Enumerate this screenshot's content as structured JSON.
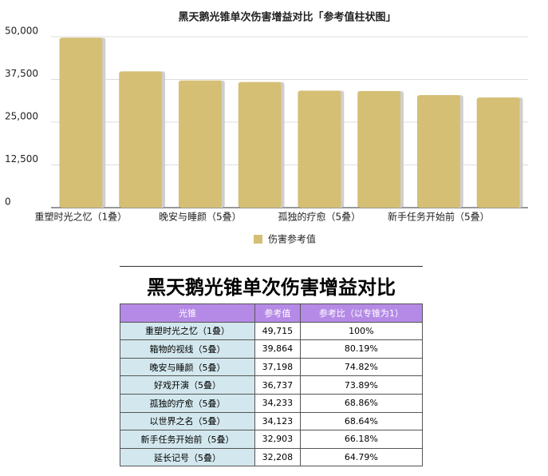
{
  "chart_data": {
    "type": "bar",
    "title": "黑天鹅光锥单次伤害增益对比「参考值柱状图」",
    "categories": [
      "重塑时光之忆（1叠）",
      null,
      "晚安与睡颜（5叠）",
      null,
      "孤独的疗愈（5叠）",
      null,
      "新手任务开始前（5叠）",
      null
    ],
    "series": [
      {
        "name": "伤害参考值",
        "color": "#d5bf74",
        "values": [
          49715,
          39864,
          37198,
          36737,
          34233,
          34123,
          32903,
          32208
        ]
      }
    ],
    "ylim": [
      0,
      50000
    ],
    "yticks": [
      0,
      {
        "value": 12500,
        "label": "12,500"
      },
      {
        "value": 25000,
        "label": "25,000"
      },
      {
        "value": 37500,
        "label": "37,500"
      },
      {
        "value": 50000,
        "label": "50,000"
      }
    ],
    "grid": true,
    "legend": "bottom"
  },
  "table": {
    "title": "黑天鹅光锥单次伤害增益对比",
    "header": [
      "光锥",
      "参考值",
      "参考比（以专锥为1）"
    ],
    "rows": [
      [
        "重塑时光之忆（1叠）",
        "49,715",
        "100%"
      ],
      [
        "箱物的视线（5叠）",
        "39,864",
        "80.19%"
      ],
      [
        "晚安与睡颜（5叠）",
        "37,198",
        "74.82%"
      ],
      [
        "好戏开演（5叠）",
        "36,737",
        "73.89%"
      ],
      [
        "孤独的疗愈（5叠）",
        "34,233",
        "68.86%"
      ],
      [
        "以世界之名（5叠）",
        "34,123",
        "68.64%"
      ],
      [
        "新手任务开始前（5叠）",
        "32,903",
        "66.18%"
      ],
      [
        "延长记号（5叠）",
        "32,208",
        "64.79%"
      ]
    ]
  }
}
